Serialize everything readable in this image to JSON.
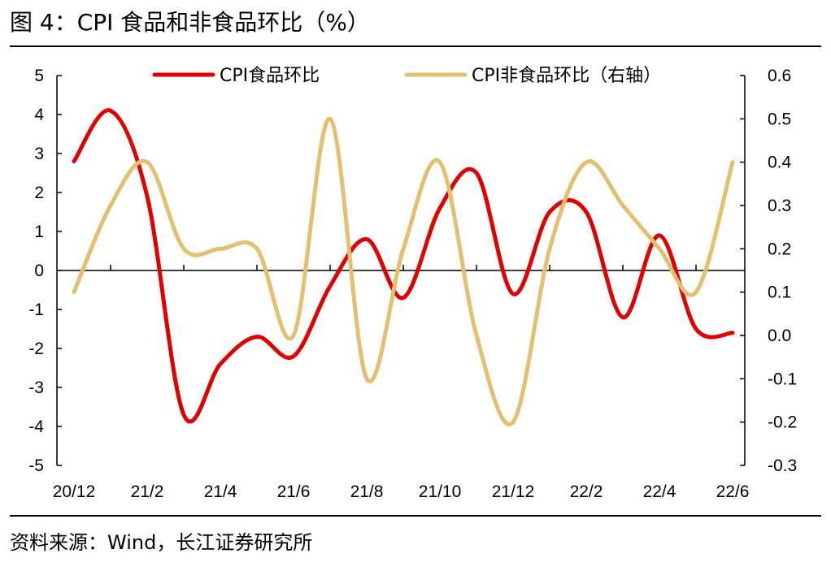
{
  "title": "图 4：CPI 食品和非食品环比（%）",
  "source": "资料来源：Wind，长江证券研究所",
  "colors": {
    "food": "#e00000",
    "nonfood": "#e3bf70",
    "axis": "#000000"
  },
  "chart_data": {
    "type": "line",
    "title": "图 4：CPI 食品和非食品环比（%）",
    "x": [
      "20/12",
      "21/1",
      "21/2",
      "21/3",
      "21/4",
      "21/5",
      "21/6",
      "21/7",
      "21/8",
      "21/9",
      "21/10",
      "21/11",
      "21/12",
      "22/1",
      "22/2",
      "22/3",
      "22/4",
      "22/5",
      "22/6"
    ],
    "xtick_labels": [
      "20/12",
      "21/2",
      "21/4",
      "21/6",
      "21/8",
      "21/10",
      "21/12",
      "22/2",
      "22/4",
      "22/6"
    ],
    "series": [
      {
        "name": "CPI食品环比",
        "axis": "left",
        "values": [
          2.8,
          4.1,
          1.9,
          -3.7,
          -2.4,
          -1.7,
          -2.2,
          -0.4,
          0.8,
          -0.7,
          1.6,
          2.5,
          -0.6,
          1.5,
          1.5,
          -1.2,
          0.9,
          -1.5,
          -1.6
        ]
      },
      {
        "name": "CPI非食品环比（右轴）",
        "axis": "right",
        "values": [
          0.1,
          0.3,
          0.4,
          0.2,
          0.2,
          0.2,
          0.0,
          0.5,
          -0.1,
          0.2,
          0.4,
          0.0,
          -0.2,
          0.2,
          0.4,
          0.3,
          0.2,
          0.1,
          0.4
        ]
      }
    ],
    "y_left": {
      "min": -5,
      "max": 5,
      "ticks": [
        "5",
        "4",
        "3",
        "2",
        "1",
        "0",
        "-1",
        "-2",
        "-3",
        "-4",
        "-5"
      ]
    },
    "y_right": {
      "min": -0.3,
      "max": 0.6,
      "ticks": [
        "0.6",
        "0.5",
        "0.4",
        "0.3",
        "0.2",
        "0.1",
        "0.0",
        "-0.1",
        "-0.2",
        "-0.3"
      ]
    },
    "legend": {
      "placement": "top"
    },
    "grid": false
  }
}
